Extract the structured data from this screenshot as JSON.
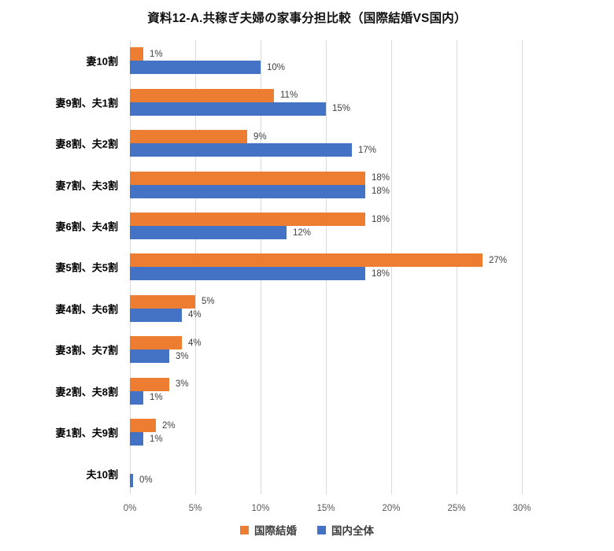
{
  "chart_data": {
    "type": "bar",
    "orientation": "horizontal",
    "title": "資料12-A.共稼ぎ夫婦の家事分担比較（国際結婚VS国内）",
    "categories": [
      "妻10割",
      "妻9割、夫1割",
      "妻8割、夫2割",
      "妻7割、夫3割",
      "妻6割、夫4割",
      "妻5割、夫5割",
      "妻4割、夫6割",
      "妻3割、夫7割",
      "妻2割、夫8割",
      "妻1割、夫9割",
      "夫10割"
    ],
    "series": [
      {
        "name": "国際結婚",
        "key": "international-marriage",
        "color": "#ED7D31",
        "values": [
          1,
          11,
          9,
          18,
          18,
          27,
          5,
          4,
          3,
          2,
          null
        ],
        "labels": [
          "1%",
          "11%",
          "9%",
          "18%",
          "18%",
          "27%",
          "5%",
          "4%",
          "3%",
          "2%",
          ""
        ]
      },
      {
        "name": "国内全体",
        "key": "domestic-overall",
        "color": "#4472C4",
        "values": [
          10,
          15,
          17,
          18,
          12,
          18,
          4,
          3,
          1,
          1,
          0
        ],
        "labels": [
          "10%",
          "15%",
          "17%",
          "18%",
          "12%",
          "18%",
          "4%",
          "3%",
          "1%",
          "1%",
          "0%"
        ]
      }
    ],
    "xlabel": "",
    "ylabel": "",
    "x_ticks": [
      "0%",
      "5%",
      "10%",
      "15%",
      "20%",
      "25%",
      "30%"
    ],
    "x_tick_values": [
      0,
      5,
      10,
      15,
      20,
      25,
      30
    ],
    "xlim": [
      0,
      30
    ],
    "grid": true,
    "legend_position": "bottom",
    "colors": {
      "grid": "#D9D9D9",
      "data_label": "#404040",
      "axis_label": "#595959",
      "category_label": "#000000",
      "title": "#111111",
      "background": "#FFFFFF"
    }
  }
}
